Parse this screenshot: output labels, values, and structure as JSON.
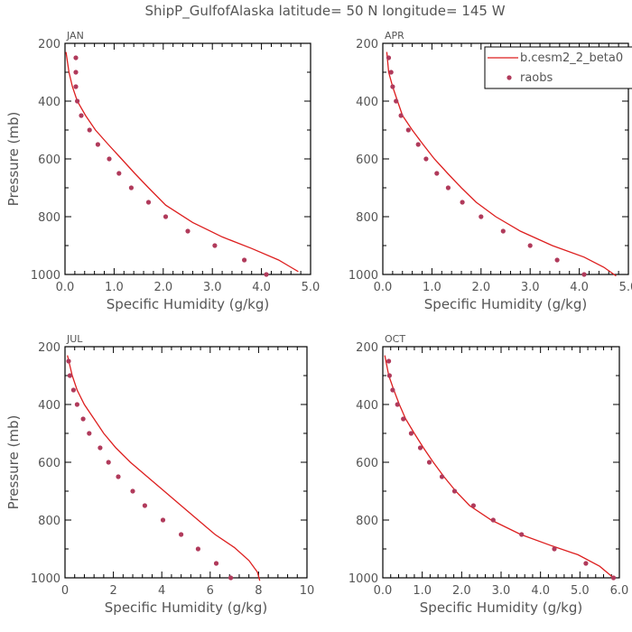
{
  "title": "ShipP_GulfofAlaska   latitude= 50 N longitude= 145 W",
  "colors": {
    "model": "#dd1f1f",
    "obs": "#b03a5b",
    "axis": "#000000",
    "text": "#555555"
  },
  "legend": [
    {
      "label": "b.cesm2_2_beta0",
      "kind": "line"
    },
    {
      "label": "raobs",
      "kind": "marker"
    }
  ],
  "chart_data": [
    {
      "type": "line",
      "panel": "JAN",
      "xlabel": "Specific Humidity (g/kg)",
      "ylabel": "Pressure (mb)",
      "xlim": [
        0,
        5
      ],
      "ylim": [
        1000,
        200
      ],
      "xticks": [
        "0.0",
        "1.0",
        "2.0",
        "3.0",
        "4.0",
        "5.0"
      ],
      "yticks": [
        "200",
        "400",
        "600",
        "800",
        "1000"
      ],
      "series": [
        {
          "name": "b.cesm2_2_beta0",
          "style": "line",
          "points": [
            [
              0.02,
              230
            ],
            [
              0.08,
              300
            ],
            [
              0.15,
              350
            ],
            [
              0.25,
              400
            ],
            [
              0.42,
              450
            ],
            [
              0.62,
              500
            ],
            [
              0.88,
              550
            ],
            [
              1.15,
              600
            ],
            [
              1.42,
              650
            ],
            [
              1.7,
              700
            ],
            [
              2.05,
              760
            ],
            [
              2.6,
              820
            ],
            [
              3.2,
              870
            ],
            [
              3.8,
              910
            ],
            [
              4.35,
              950
            ],
            [
              4.6,
              975
            ],
            [
              4.75,
              990
            ]
          ]
        },
        {
          "name": "raobs",
          "style": "marker",
          "points": [
            [
              0.22,
              250
            ],
            [
              0.22,
              300
            ],
            [
              0.22,
              350
            ],
            [
              0.25,
              400
            ],
            [
              0.33,
              450
            ],
            [
              0.5,
              500
            ],
            [
              0.67,
              550
            ],
            [
              0.9,
              600
            ],
            [
              1.1,
              650
            ],
            [
              1.35,
              700
            ],
            [
              1.7,
              750
            ],
            [
              2.05,
              800
            ],
            [
              2.5,
              850
            ],
            [
              3.05,
              900
            ],
            [
              3.65,
              950
            ],
            [
              4.1,
              1000
            ]
          ]
        }
      ]
    },
    {
      "type": "line",
      "panel": "APR",
      "xlabel": "Specific Humidity (g/kg)",
      "ylabel": "",
      "xlim": [
        0,
        5
      ],
      "ylim": [
        1000,
        200
      ],
      "xticks": [
        "0.0",
        "1.0",
        "2.0",
        "3.0",
        "4.0",
        "5.0"
      ],
      "yticks": [
        "200",
        "400",
        "600",
        "800",
        "1000"
      ],
      "series": [
        {
          "name": "b.cesm2_2_beta0",
          "style": "line",
          "points": [
            [
              0.08,
              230
            ],
            [
              0.12,
              300
            ],
            [
              0.2,
              350
            ],
            [
              0.3,
              400
            ],
            [
              0.4,
              450
            ],
            [
              0.6,
              500
            ],
            [
              0.82,
              550
            ],
            [
              1.05,
              600
            ],
            [
              1.32,
              650
            ],
            [
              1.6,
              700
            ],
            [
              1.9,
              750
            ],
            [
              2.3,
              800
            ],
            [
              2.8,
              850
            ],
            [
              3.45,
              900
            ],
            [
              4.1,
              940
            ],
            [
              4.5,
              975
            ],
            [
              4.75,
              1005
            ]
          ]
        },
        {
          "name": "raobs",
          "style": "marker",
          "points": [
            [
              0.12,
              250
            ],
            [
              0.17,
              300
            ],
            [
              0.2,
              350
            ],
            [
              0.27,
              400
            ],
            [
              0.37,
              450
            ],
            [
              0.52,
              500
            ],
            [
              0.72,
              550
            ],
            [
              0.88,
              600
            ],
            [
              1.1,
              650
            ],
            [
              1.33,
              700
            ],
            [
              1.62,
              750
            ],
            [
              2.0,
              800
            ],
            [
              2.45,
              850
            ],
            [
              3.0,
              900
            ],
            [
              3.55,
              950
            ],
            [
              4.1,
              1000
            ]
          ]
        }
      ]
    },
    {
      "type": "line",
      "panel": "JUL",
      "xlabel": "Specific Humidity (g/kg)",
      "ylabel": "Pressure (mb)",
      "xlim": [
        0,
        10
      ],
      "ylim": [
        1000,
        200
      ],
      "xticks": [
        "0",
        "2",
        "4",
        "6",
        "8",
        "10"
      ],
      "yticks": [
        "200",
        "400",
        "600",
        "800",
        "1000"
      ],
      "series": [
        {
          "name": "b.cesm2_2_beta0",
          "style": "line",
          "points": [
            [
              0.1,
              230
            ],
            [
              0.3,
              300
            ],
            [
              0.5,
              350
            ],
            [
              0.8,
              400
            ],
            [
              1.2,
              450
            ],
            [
              1.6,
              500
            ],
            [
              2.1,
              550
            ],
            [
              2.7,
              600
            ],
            [
              3.4,
              650
            ],
            [
              4.1,
              700
            ],
            [
              4.8,
              750
            ],
            [
              5.5,
              800
            ],
            [
              6.2,
              850
            ],
            [
              7.0,
              895
            ],
            [
              7.6,
              940
            ],
            [
              7.95,
              980
            ],
            [
              8.05,
              1010
            ]
          ]
        },
        {
          "name": "raobs",
          "style": "marker",
          "points": [
            [
              0.15,
              250
            ],
            [
              0.2,
              300
            ],
            [
              0.35,
              350
            ],
            [
              0.5,
              400
            ],
            [
              0.75,
              450
            ],
            [
              1.0,
              500
            ],
            [
              1.45,
              550
            ],
            [
              1.8,
              600
            ],
            [
              2.2,
              650
            ],
            [
              2.8,
              700
            ],
            [
              3.3,
              750
            ],
            [
              4.05,
              800
            ],
            [
              4.8,
              850
            ],
            [
              5.5,
              900
            ],
            [
              6.25,
              950
            ],
            [
              6.85,
              1000
            ]
          ]
        }
      ]
    },
    {
      "type": "line",
      "panel": "OCT",
      "xlabel": "Specific Humidity (g/kg)",
      "ylabel": "",
      "xlim": [
        0,
        6
      ],
      "ylim": [
        1000,
        200
      ],
      "xticks": [
        "0.0",
        "1.0",
        "2.0",
        "3.0",
        "4.0",
        "5.0",
        "6.0"
      ],
      "yticks": [
        "200",
        "400",
        "600",
        "800",
        "1000"
      ],
      "series": [
        {
          "name": "b.cesm2_2_beta0",
          "style": "line",
          "points": [
            [
              0.05,
              230
            ],
            [
              0.15,
              300
            ],
            [
              0.28,
              350
            ],
            [
              0.42,
              400
            ],
            [
              0.58,
              450
            ],
            [
              0.8,
              500
            ],
            [
              1.03,
              550
            ],
            [
              1.28,
              600
            ],
            [
              1.55,
              650
            ],
            [
              1.85,
              700
            ],
            [
              2.2,
              750
            ],
            [
              2.75,
              800
            ],
            [
              3.5,
              850
            ],
            [
              4.3,
              890
            ],
            [
              4.95,
              920
            ],
            [
              5.5,
              960
            ],
            [
              5.85,
              1000
            ]
          ]
        },
        {
          "name": "raobs",
          "style": "marker",
          "points": [
            [
              0.15,
              250
            ],
            [
              0.17,
              300
            ],
            [
              0.25,
              350
            ],
            [
              0.37,
              400
            ],
            [
              0.52,
              450
            ],
            [
              0.72,
              500
            ],
            [
              0.95,
              550
            ],
            [
              1.18,
              600
            ],
            [
              1.5,
              650
            ],
            [
              1.82,
              700
            ],
            [
              2.3,
              750
            ],
            [
              2.8,
              800
            ],
            [
              3.52,
              850
            ],
            [
              4.35,
              900
            ],
            [
              5.15,
              950
            ],
            [
              5.85,
              1000
            ]
          ]
        }
      ]
    }
  ]
}
